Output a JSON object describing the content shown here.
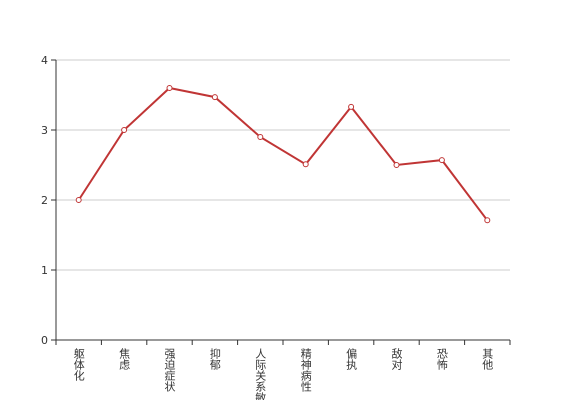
{
  "chart_data": {
    "type": "line",
    "categories": [
      "躯体化",
      "焦虑",
      "强迫症状",
      "抑郁",
      "人际关系敏感",
      "精神病性",
      "偏执",
      "敌对",
      "恐怖",
      "其他"
    ],
    "values": [
      2.0,
      3.0,
      3.6,
      3.47,
      2.9,
      2.51,
      3.33,
      2.5,
      2.57,
      1.71
    ],
    "color": "#c03535",
    "ylim": [
      0,
      4
    ],
    "yticks": [
      0,
      1,
      2,
      3,
      4
    ],
    "grid": true
  }
}
